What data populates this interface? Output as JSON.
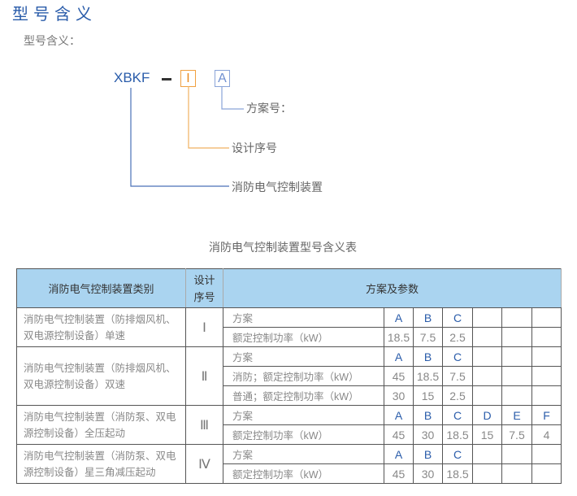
{
  "title": "型号含义",
  "subtitle": "型号含义：",
  "diagram": {
    "prefix": "XBKF",
    "dash": "–",
    "design_code": "I",
    "scheme_code": "A",
    "scheme_label": "方案号：",
    "design_label": "设计序号",
    "prefix_label": "消防电气控制装置",
    "colors": {
      "blue": "#2a5caa",
      "orange": "#f0a040",
      "light_blue": "#8aa4d8"
    }
  },
  "table": {
    "caption": "消防电气控制装置型号含义表",
    "headers": [
      "消防电气控制装置类别",
      "设计序号",
      "方案及参数"
    ],
    "groups": [
      {
        "category": "消防电气控制装置（防排烟风机、双电源控制设备）单速",
        "serial": "Ⅰ",
        "rows": [
          {
            "label": "方案",
            "values": [
              "A",
              "B",
              "C",
              "",
              "",
              ""
            ],
            "letters": true
          },
          {
            "label": "额定控制功率（kW）",
            "values": [
              "18.5",
              "7.5",
              "2.5",
              "",
              "",
              ""
            ]
          }
        ]
      },
      {
        "category": "消防电气控制装置（防排烟风机、双电源控制设备）双速",
        "serial": "Ⅱ",
        "rows": [
          {
            "label": "方案",
            "values": [
              "A",
              "B",
              "C",
              "",
              "",
              ""
            ],
            "letters": true
          },
          {
            "label": "消防；额定控制功率（kW）",
            "values": [
              "45",
              "18.5",
              "7.5",
              "",
              "",
              ""
            ]
          },
          {
            "label": "普通；额定控制功率（kW）",
            "values": [
              "30",
              "15",
              "2.5",
              "",
              "",
              ""
            ]
          }
        ]
      },
      {
        "category": "消防电气控制装置（消防泵、双电源控制设备）全压起动",
        "serial": "Ⅲ",
        "rows": [
          {
            "label": "方案",
            "values": [
              "A",
              "B",
              "C",
              "D",
              "E",
              "F"
            ],
            "letters": true
          },
          {
            "label": "额定控制功率（kW）",
            "values": [
              "45",
              "30",
              "18.5",
              "15",
              "7.5",
              "4"
            ]
          }
        ]
      },
      {
        "category": "消防电气控制装置（消防泵、双电源控制设备）星三角减压起动",
        "serial": "Ⅳ",
        "rows": [
          {
            "label": "方案",
            "values": [
              "A",
              "B",
              "C",
              "",
              "",
              ""
            ],
            "letters": true
          },
          {
            "label": "额定控制功率（kW）",
            "values": [
              "45",
              "30",
              "18.5",
              "",
              "",
              ""
            ]
          }
        ]
      }
    ]
  }
}
